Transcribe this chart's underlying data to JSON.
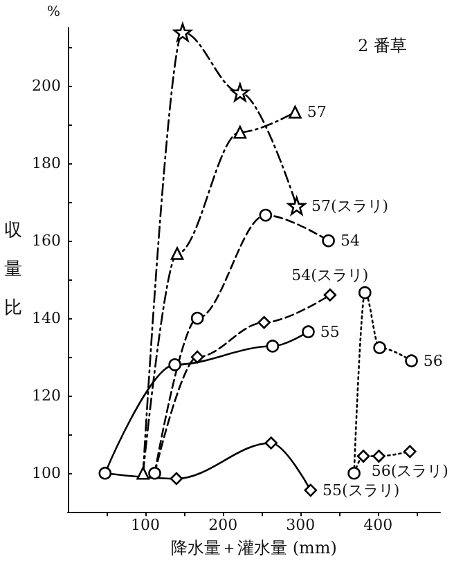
{
  "chart_data": {
    "type": "line",
    "title": "2 番草",
    "xlabel": "降水量＋灌水量 (mm)",
    "ylabel": "収量比",
    "annotations": [
      "%"
    ],
    "xlim": [
      0,
      480
    ],
    "xticks": [
      {
        "value": 50,
        "label": null
      },
      100,
      {
        "value": 150,
        "label": null
      },
      200,
      {
        "value": 250,
        "label": null
      },
      300,
      {
        "value": 350,
        "label": null
      },
      400,
      {
        "value": 450,
        "label": null
      }
    ],
    "ylim": [
      90,
      215
    ],
    "yticks": [
      100,
      {
        "value": 110,
        "label": null
      },
      120,
      {
        "value": 130,
        "label": null
      },
      140,
      {
        "value": 150,
        "label": null
      },
      160,
      {
        "value": 170,
        "label": null
      },
      180,
      {
        "value": 190,
        "label": null
      },
      200,
      {
        "value": 210,
        "label": null
      }
    ],
    "grid": false,
    "legend": false,
    "series": [
      {
        "name": "57",
        "color": "#000000",
        "marker": "triangle",
        "line_style": "dashdot",
        "x": [
          97,
          141,
          222,
          293
        ],
        "values": [
          100,
          156.7,
          188,
          193.2
        ]
      },
      {
        "name": "57(スラリ)",
        "color": "#000000",
        "marker": "star",
        "line_style": "dashdot",
        "x": [
          97,
          148,
          222,
          295
        ],
        "values": [
          100,
          213.8,
          198.3,
          169
        ]
      },
      {
        "name": "54",
        "color": "#000000",
        "marker": "circle",
        "line_style": "dashed",
        "x": [
          112,
          167,
          255,
          336
        ],
        "values": [
          100,
          140,
          166.6,
          160
        ]
      },
      {
        "name": "54(スラリ)",
        "color": "#000000",
        "marker": "diamond",
        "line_style": "dashed",
        "x": [
          112,
          167,
          253,
          338
        ],
        "values": [
          100,
          130,
          138.9,
          146
        ]
      },
      {
        "name": "55",
        "color": "#000000",
        "marker": "circle",
        "line_style": "solid",
        "x": [
          48,
          138,
          264,
          310
        ],
        "values": [
          100,
          128,
          132.8,
          136.5
        ]
      },
      {
        "name": "55(スラリ)",
        "color": "#000000",
        "marker": "diamond",
        "line_style": "solid",
        "x": [
          48,
          140,
          262,
          313
        ],
        "values": [
          100,
          98.6,
          107.8,
          95.6
        ]
      },
      {
        "name": "56",
        "color": "#000000",
        "marker": "circle",
        "line_style": "dotted",
        "x": [
          369,
          383,
          402,
          443
        ],
        "values": [
          100,
          146.6,
          132.4,
          129
        ]
      },
      {
        "name": "56(スラリ)",
        "color": "#000000",
        "marker": "diamond",
        "line_style": "dotted",
        "x": [
          369,
          381,
          401,
          441
        ],
        "values": [
          100,
          104.4,
          104.4,
          105.6
        ]
      }
    ]
  }
}
